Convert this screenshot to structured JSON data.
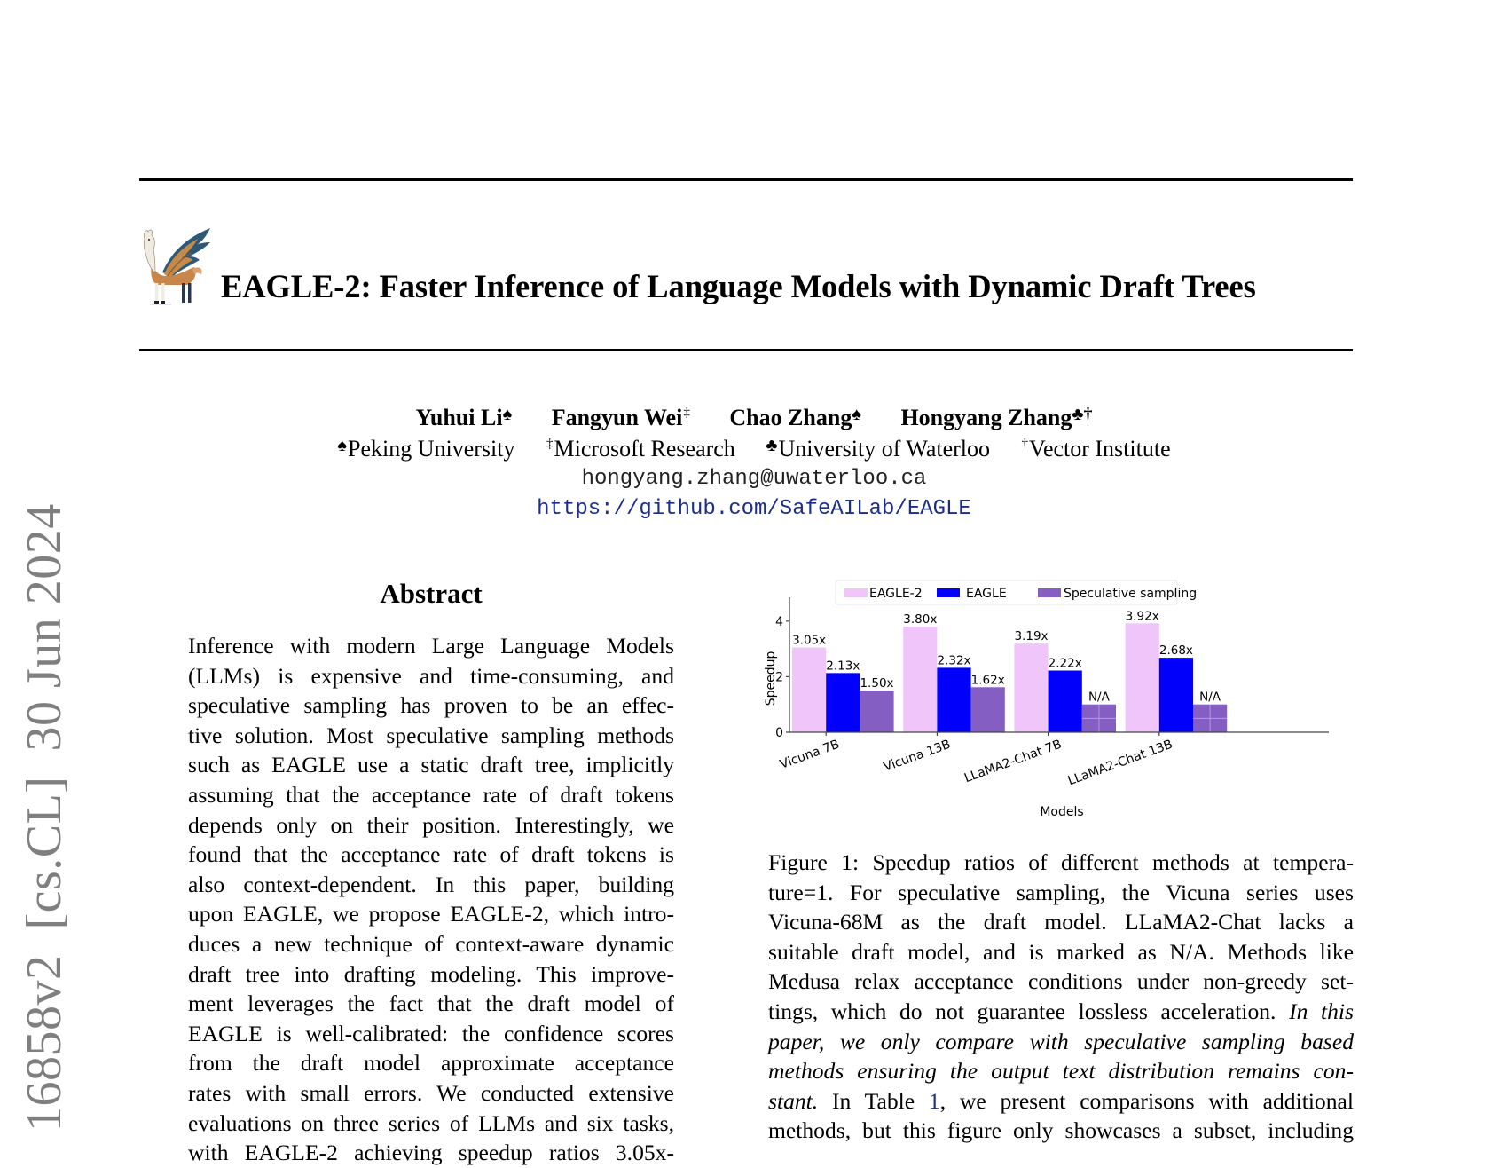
{
  "arxiv_stamp": {
    "id": "16858v2",
    "category": "[cs.CL]",
    "date": "30 Jun 2024"
  },
  "header": {
    "logo_icon": "winged-llama-logo",
    "title": "EAGLE-2: Faster Inference of Language Models with Dynamic Draft Trees"
  },
  "authors": [
    {
      "name": "Yuhui Li",
      "marks": "♠"
    },
    {
      "name": "Fangyun Wei",
      "marks": "‡"
    },
    {
      "name": "Chao Zhang",
      "marks": "♠"
    },
    {
      "name": "Hongyang Zhang",
      "marks": "♣†"
    }
  ],
  "affiliations": [
    {
      "mark": "♠",
      "name": "Peking University"
    },
    {
      "mark": "‡",
      "name": "Microsoft Research"
    },
    {
      "mark": "♣",
      "name": "University of Waterloo"
    },
    {
      "mark": "†",
      "name": "Vector Institute"
    }
  ],
  "contact": {
    "email": "hongyang.zhang@uwaterloo.ca",
    "url": "https://github.com/SafeAILab/EAGLE"
  },
  "abstract": {
    "heading": "Abstract",
    "lines": [
      "Inference with modern Large Language Models",
      "(LLMs) is expensive and time-consuming, and",
      "speculative sampling has proven to be an effec-",
      "tive solution. Most speculative sampling methods",
      "such as EAGLE use a static draft tree, implicitly",
      "assuming that the acceptance rate of draft tokens",
      "depends only on their position. Interestingly, we",
      "found that the acceptance rate of draft tokens is",
      "also context-dependent.  In this paper, building",
      "upon EAGLE, we propose EAGLE-2, which intro-",
      "duces a new technique of context-aware dynamic",
      "draft tree into drafting modeling.  This improve-",
      "ment leverages the fact that the draft model of",
      "EAGLE is well-calibrated: the confidence scores",
      "from the draft model approximate acceptance",
      "rates with small errors. We conducted extensive",
      "evaluations on three series of LLMs and six tasks,",
      "with EAGLE-2 achieving speedup ratios 3.05x-"
    ]
  },
  "figure": {
    "caption_lines": [
      {
        "parts": [
          {
            "t": "Figure 1: Speedup ratios of different methods at tempera-"
          }
        ]
      },
      {
        "parts": [
          {
            "t": "ture=1.  For speculative sampling, the Vicuna series uses"
          }
        ]
      },
      {
        "parts": [
          {
            "t": "Vicuna-68M as the draft model.  LLaMA2-Chat lacks a"
          }
        ]
      },
      {
        "parts": [
          {
            "t": "suitable draft model, and is marked as N/A. Methods like"
          }
        ]
      },
      {
        "parts": [
          {
            "t": "Medusa relax acceptance conditions under non-greedy set-"
          }
        ]
      },
      {
        "parts": [
          {
            "t": "tings, which do not guarantee lossless acceleration. "
          },
          {
            "t": "In this",
            "i": true
          }
        ]
      },
      {
        "parts": [
          {
            "t": "paper, we only compare with speculative sampling based",
            "i": true
          }
        ]
      },
      {
        "parts": [
          {
            "t": "methods ensuring the output text distribution remains con-",
            "i": true
          }
        ]
      },
      {
        "parts": [
          {
            "t": "stant.",
            "i": true
          },
          {
            "t": " In Table "
          },
          {
            "t": "1",
            "ref": true
          },
          {
            "t": ", we present comparisons with additional"
          }
        ]
      },
      {
        "parts": [
          {
            "t": "methods, but this figure only showcases a subset, including"
          }
        ]
      }
    ]
  },
  "chart_data": {
    "type": "bar",
    "title": "",
    "xlabel": "Models",
    "ylabel": "Speedup",
    "ylim": [
      0,
      4.8
    ],
    "yticks": [
      0,
      2,
      4
    ],
    "grid": false,
    "legend_position": "top",
    "categories": [
      "Vicuna 7B",
      "Vicuna 13B",
      "LLaMA2-Chat 7B",
      "LLaMA2-Chat 13B"
    ],
    "series": [
      {
        "name": "EAGLE-2",
        "color": "#f0c6fa",
        "values": [
          3.05,
          3.8,
          3.19,
          3.92
        ],
        "labels": [
          "3.05x",
          "3.80x",
          "3.19x",
          "3.92x"
        ]
      },
      {
        "name": "EAGLE",
        "color": "#0000fb",
        "values": [
          2.13,
          2.32,
          2.22,
          2.68
        ],
        "labels": [
          "2.13x",
          "2.32x",
          "2.22x",
          "2.68x"
        ]
      },
      {
        "name": "Speculative sampling",
        "color": "#845ec2",
        "values": [
          1.5,
          1.62,
          null,
          null
        ],
        "placeholder_height": 1.0,
        "labels": [
          "1.50x",
          "1.62x",
          "N/A",
          "N/A"
        ]
      }
    ]
  }
}
